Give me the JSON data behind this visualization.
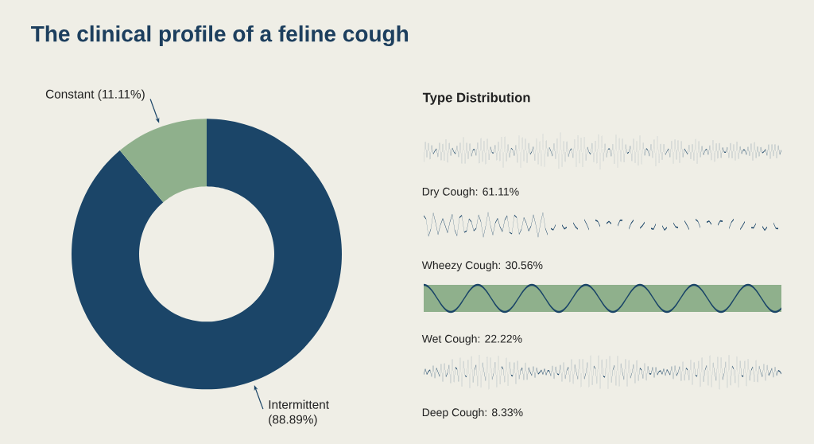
{
  "chart_data": [
    {
      "type": "donut",
      "title": "The clinical profile of a feline cough",
      "categories": [
        "Intermittent",
        "Constant"
      ],
      "values": [
        88.89,
        11.11
      ],
      "colors": [
        "#1b4568",
        "#8fb08c"
      ],
      "value_labels": [
        "(88.89%)",
        "(11.11%)"
      ]
    },
    {
      "type": "other",
      "title": "Type Distribution",
      "annotations": [
        "Dry Cough: 61.11%",
        "Wheezy Cough: 30.56%",
        "Wet Cough: 22.22%",
        "Deep Cough: 8.33%"
      ]
    }
  ]
}
